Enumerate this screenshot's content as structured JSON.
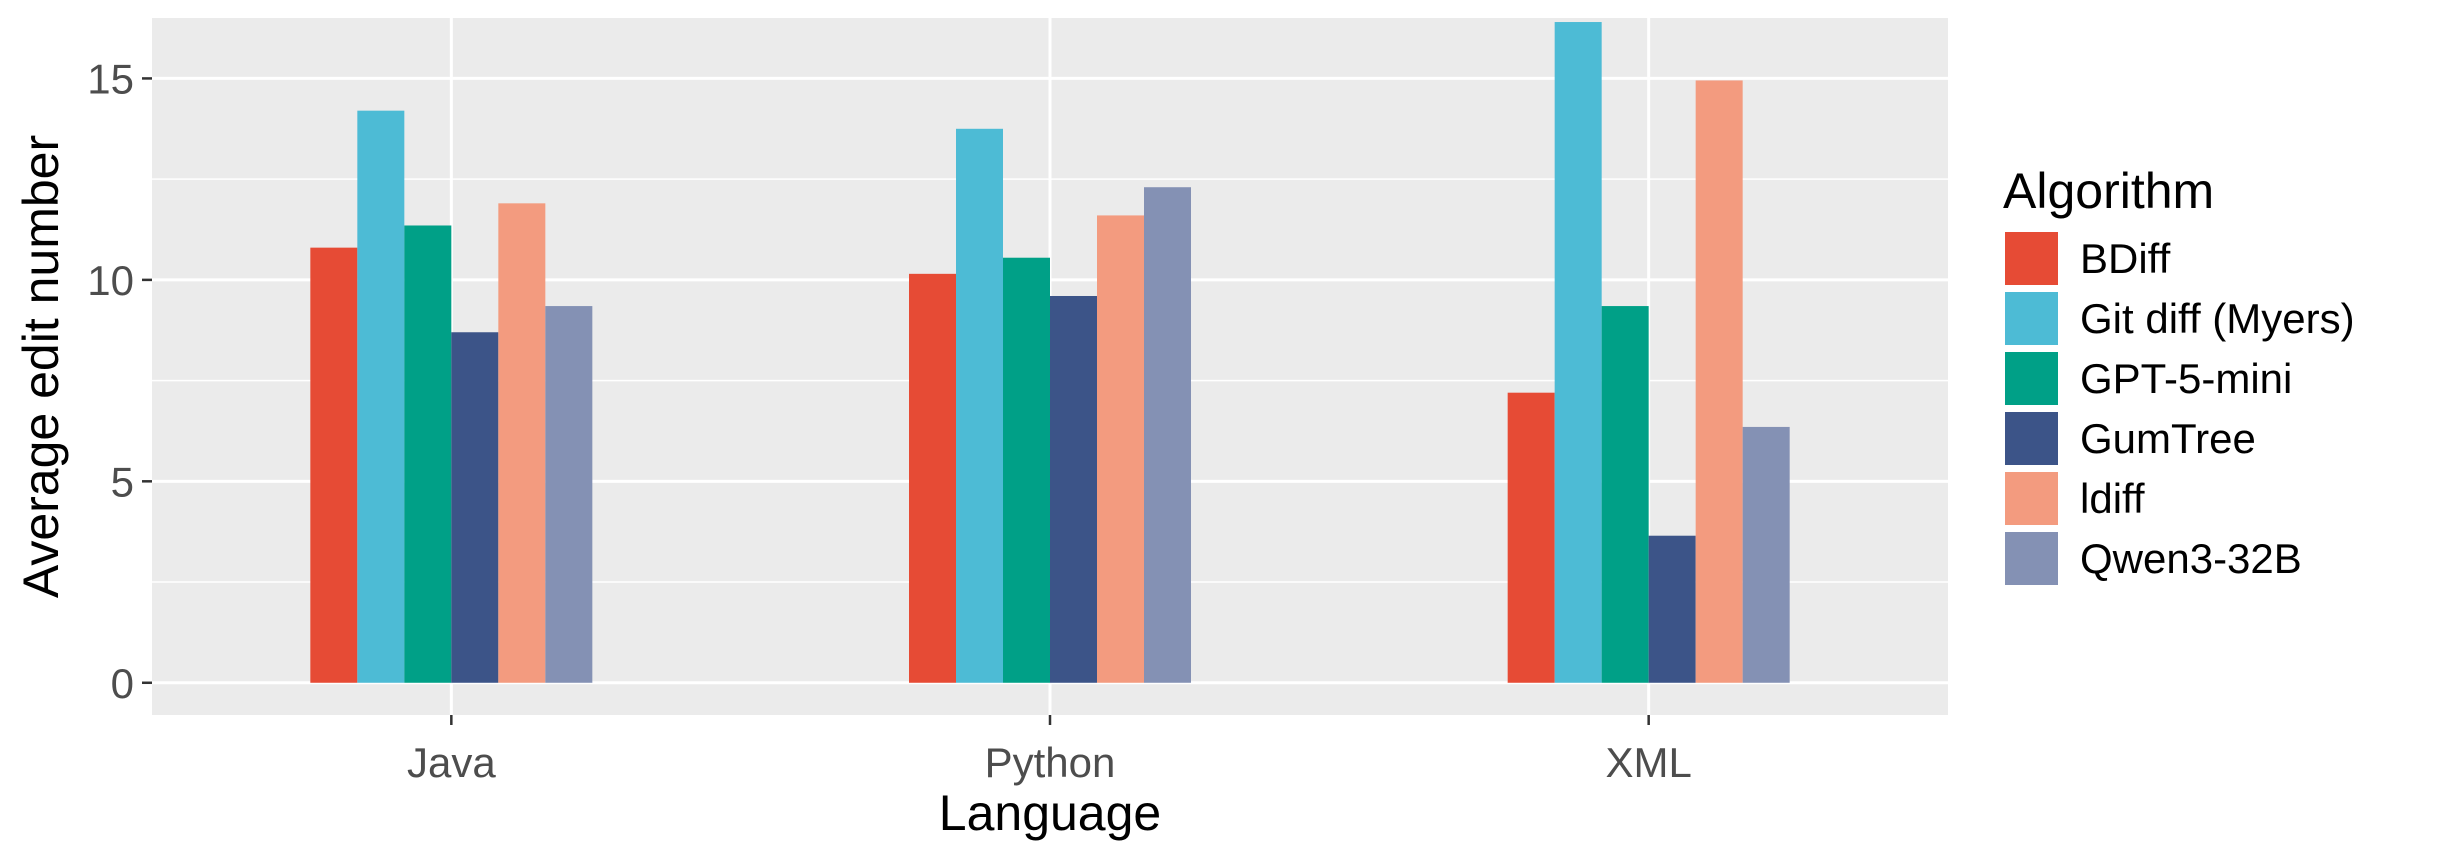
{
  "chart_data": {
    "type": "bar",
    "xlabel": "Language",
    "ylabel": "Average edit number",
    "categories": [
      "Java",
      "Python",
      "XML"
    ],
    "ylim": [
      -0.8,
      16.5
    ],
    "yticks": [
      0,
      5,
      10,
      15
    ],
    "grid": true,
    "legend": {
      "title": "Algorithm",
      "placement": "right"
    },
    "series": [
      {
        "name": "BDiff",
        "color": "#E64B35",
        "values": [
          10.8,
          10.15,
          7.2
        ]
      },
      {
        "name": "Git diff (Myers)",
        "color": "#4DBBD5",
        "values": [
          14.2,
          13.75,
          16.4
        ]
      },
      {
        "name": "GPT-5-mini",
        "color": "#00A087",
        "values": [
          11.35,
          10.55,
          9.35
        ]
      },
      {
        "name": "GumTree",
        "color": "#3C5488",
        "values": [
          8.7,
          9.6,
          3.65
        ]
      },
      {
        "name": "ldiff",
        "color": "#F39B7F",
        "values": [
          11.9,
          11.6,
          14.95
        ]
      },
      {
        "name": "Qwen3-32B",
        "color": "#8491B4",
        "values": [
          9.35,
          12.3,
          6.35
        ]
      }
    ]
  }
}
